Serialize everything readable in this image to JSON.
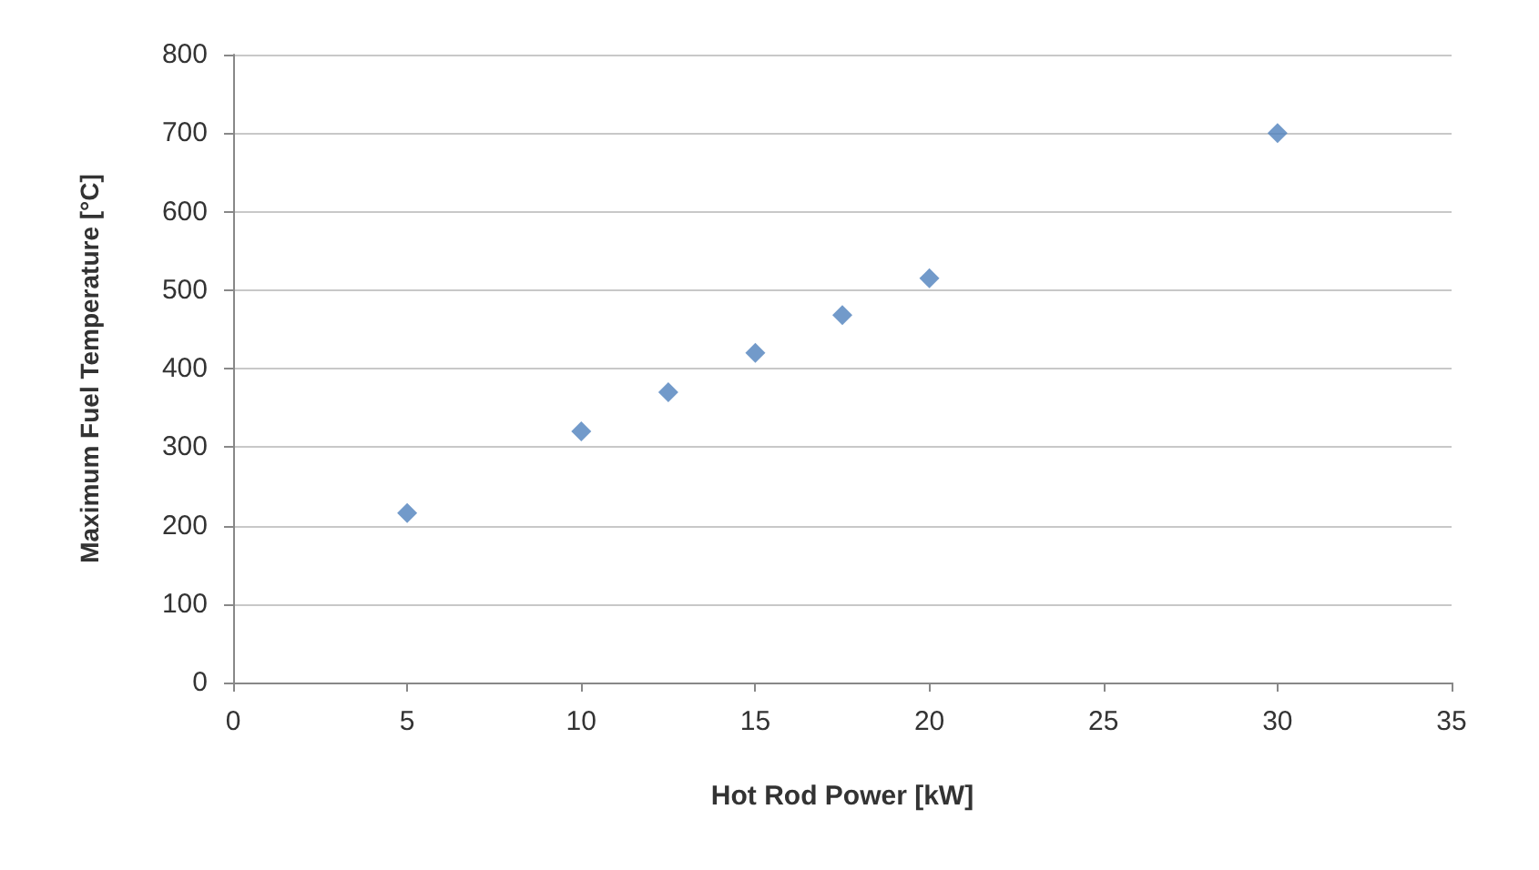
{
  "chart_data": {
    "type": "scatter",
    "xlabel": "Hot Rod Power [kW]",
    "ylabel": "Maximum Fuel Temperature [°C]",
    "x": [
      5,
      10,
      12.5,
      15,
      17.5,
      20,
      30
    ],
    "series": [
      {
        "color": "#4f81bd",
        "values": [
          216,
          320,
          370,
          420,
          468,
          515,
          700
        ]
      }
    ],
    "xlim": [
      0,
      35
    ],
    "xticks": [
      0,
      5,
      10,
      15,
      20,
      25,
      30,
      35
    ],
    "ylim": [
      0,
      800
    ],
    "yticks": [
      0,
      100,
      200,
      300,
      400,
      500,
      600,
      700,
      800
    ],
    "grid": "y",
    "marker": "diamond"
  }
}
